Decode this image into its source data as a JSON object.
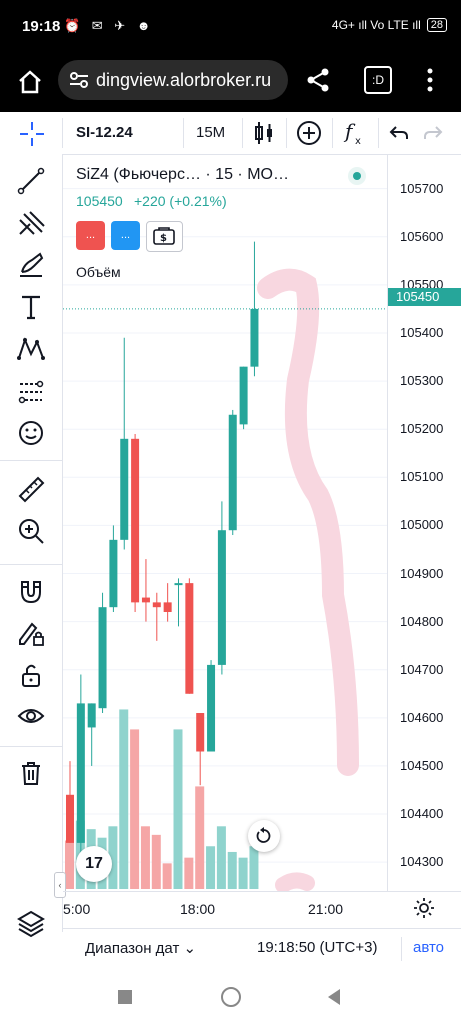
{
  "status_bar": {
    "time": "19:18",
    "left_icons": "⏰ ✉ ✈ ☻",
    "right_text": "4G+ ıll  Vo LTE ıll",
    "battery": "28"
  },
  "browser": {
    "url": "dingview.alorbroker.ru",
    "tabs_label": ":D"
  },
  "toolbar": {
    "symbol": "SI-12.24",
    "interval": "15M",
    "icons": [
      "candles-icon",
      "plus-circle-icon",
      "fx-icon",
      "undo-icon",
      "redo-icon"
    ]
  },
  "legend": {
    "title": "SiZ4 (Фьючерс…  ·  15  ·  МО…",
    "price": "105450",
    "change": "+220 (+0.21%)",
    "sell_label": "...",
    "buy_label": "...",
    "volume_label": "Объём"
  },
  "colors": {
    "up": "#26a69a",
    "down": "#ef5350",
    "up_volume": "#8fd3cd",
    "down_volume": "#f5a6a6",
    "accent": "#2962ff",
    "drawing": "#f8d7e0"
  },
  "price_axis": [
    "105700",
    "105600",
    "105500",
    "105400",
    "105300",
    "105200",
    "105100",
    "105000",
    "104900",
    "104800",
    "104700",
    "104600",
    "104500",
    "104400",
    "104300"
  ],
  "current_price": "105450",
  "time_axis": [
    "5:00",
    "18:00",
    "21:00"
  ],
  "bottom": {
    "date_range": "Диапазон дат",
    "clock": "19:18:50 (UTC+3)",
    "auto": "авто"
  },
  "chart_data": {
    "type": "candlestick",
    "ylim": [
      104240,
      105770
    ],
    "candles": [
      {
        "o": 104440,
        "h": 104510,
        "l": 104340,
        "c": 104340,
        "v": 85
      },
      {
        "o": 104340,
        "h": 104690,
        "l": 104310,
        "c": 104630,
        "v": 120
      },
      {
        "o": 104580,
        "h": 104630,
        "l": 104500,
        "c": 104630,
        "v": 105
      },
      {
        "o": 104620,
        "h": 104860,
        "l": 104610,
        "c": 104830,
        "v": 90
      },
      {
        "o": 104830,
        "h": 105000,
        "l": 104820,
        "c": 104970,
        "v": 110
      },
      {
        "o": 104970,
        "h": 105390,
        "l": 104950,
        "c": 105180,
        "v": 315
      },
      {
        "o": 105180,
        "h": 105190,
        "l": 104820,
        "c": 104840,
        "v": 280
      },
      {
        "o": 104850,
        "h": 104930,
        "l": 104800,
        "c": 104840,
        "v": 110
      },
      {
        "o": 104840,
        "h": 104860,
        "l": 104760,
        "c": 104830,
        "v": 95
      },
      {
        "o": 104840,
        "h": 104880,
        "l": 104800,
        "c": 104820,
        "v": 45
      },
      {
        "o": 104880,
        "h": 104890,
        "l": 104790,
        "c": 104880,
        "v": 280
      },
      {
        "o": 104880,
        "h": 104890,
        "l": 104650,
        "c": 104650,
        "v": 55
      },
      {
        "o": 104610,
        "h": 104610,
        "l": 104460,
        "c": 104530,
        "v": 180
      },
      {
        "o": 104530,
        "h": 104720,
        "l": 104530,
        "c": 104710,
        "v": 75
      },
      {
        "o": 104710,
        "h": 105050,
        "l": 104690,
        "c": 104990,
        "v": 110
      },
      {
        "o": 104990,
        "h": 105240,
        "l": 104980,
        "c": 105230,
        "v": 65
      },
      {
        "o": 105210,
        "h": 105330,
        "l": 105200,
        "c": 105330,
        "v": 55
      },
      {
        "o": 105330,
        "h": 105590,
        "l": 105310,
        "c": 105450,
        "v": 75
      }
    ]
  }
}
